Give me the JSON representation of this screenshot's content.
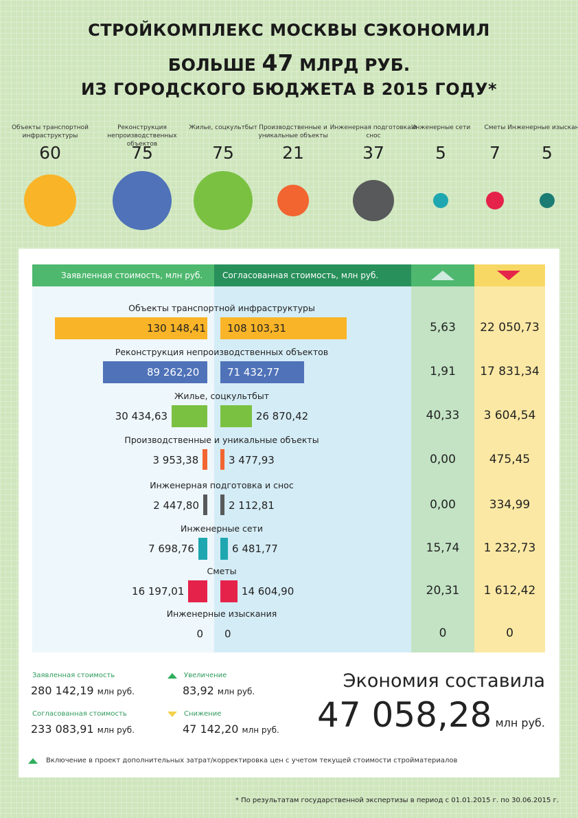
{
  "title": {
    "line1": "СТРОЙКОМПЛЕКС МОСКВЫ СЭКОНОМИЛ",
    "line2_pre": "БОЛЬШЕ ",
    "line2_big": "47",
    "line2_post": " МЛРД РУБ.",
    "line3": "ИЗ ГОРОДСКОГО БЮДЖЕТА В 2015 ГОДУ*"
  },
  "categories": [
    {
      "label": "Объекты транспортной инфраструктуры",
      "count": "60",
      "color": "#f9b427"
    },
    {
      "label": "Реконструкция непроизводственных объектов",
      "count": "75",
      "color": "#4f72b8"
    },
    {
      "label": "Жилье, соцкультбыт",
      "count": "75",
      "color": "#7ac142"
    },
    {
      "label": "Производственные и уникальные объекты",
      "count": "21",
      "color": "#f26531"
    },
    {
      "label": "Инженерная подготовка и снос",
      "count": "37",
      "color": "#58595b"
    },
    {
      "label": "Инженерные сети",
      "count": "5",
      "color": "#1ea7b0"
    },
    {
      "label": "Сметы",
      "count": "7",
      "color": "#e5234a"
    },
    {
      "label": "Инженерные изыскания",
      "count": "5",
      "color": "#1b7c74"
    }
  ],
  "table": {
    "col_declared": "Заявленная стоимость, млн руб.",
    "col_approved": "Согласованная стоимость, млн руб.",
    "col_increase_icon": "triangle-up-icon",
    "col_decrease_icon": "triangle-down-icon"
  },
  "rows": [
    {
      "label": "Объекты транспортной инфраструктуры",
      "declared": "130 148,41",
      "approved": "108 103,31",
      "increase": "5,63",
      "decrease": "22 050,73"
    },
    {
      "label": "Реконструкция непроизводственных объектов",
      "declared": "89 262,20",
      "approved": "71 432,77",
      "increase": "1,91",
      "decrease": "17 831,34"
    },
    {
      "label": "Жилье, соцкультбыт",
      "declared": "30 434,63",
      "approved": "26 870,42",
      "increase": "40,33",
      "decrease": "3 604,54"
    },
    {
      "label": "Производственные и уникальные объекты",
      "declared": "3 953,38",
      "approved": "3 477,93",
      "increase": "0,00",
      "decrease": "475,45"
    },
    {
      "label": "Инженерная подготовка и снос",
      "declared": "2 447,80",
      "approved": "2 112,81",
      "increase": "0,00",
      "decrease": "334,99"
    },
    {
      "label": "Инженерные сети",
      "declared": "7 698,76",
      "approved": "6 481,77",
      "increase": "15,74",
      "decrease": "1 232,73"
    },
    {
      "label": "Сметы",
      "declared": "16 197,01",
      "approved": "14 604,90",
      "increase": "20,31",
      "decrease": "1 612,42"
    },
    {
      "label": "Инженерные изыскания",
      "declared": "0",
      "approved": "0",
      "increase": "0",
      "decrease": "0"
    }
  ],
  "chart_data": {
    "type": "bar",
    "categories": [
      "Объекты транспортной инфраструктуры",
      "Реконструкция непроизводственных объектов",
      "Жилье, соцкультбыт",
      "Производственные и уникальные объекты",
      "Инженерная подготовка и снос",
      "Инженерные сети",
      "Сметы",
      "Инженерные изыскания"
    ],
    "series": [
      {
        "name": "Заявленная стоимость, млн руб.",
        "values": [
          130148.41,
          89262.2,
          30434.63,
          3953.38,
          2447.8,
          7698.76,
          16197.01,
          0
        ]
      },
      {
        "name": "Согласованная стоимость, млн руб.",
        "values": [
          108103.31,
          71432.77,
          26870.42,
          3477.93,
          2112.81,
          6481.77,
          14604.9,
          0
        ]
      }
    ],
    "increase": [
      5.63,
      1.91,
      40.33,
      0.0,
      0.0,
      15.74,
      20.31,
      0
    ],
    "decrease": [
      22050.73,
      17831.34,
      3604.54,
      475.45,
      334.99,
      1232.73,
      1612.42,
      0
    ],
    "object_counts": [
      60,
      75,
      75,
      21,
      37,
      5,
      7,
      5
    ],
    "colors": [
      "#f9b427",
      "#4f72b8",
      "#7ac142",
      "#f26531",
      "#58595b",
      "#1ea7b0",
      "#e5234a",
      "#1b7c74"
    ]
  },
  "legend": {
    "declared_label": "Заявленная стоимость",
    "declared_value": "280 142,19",
    "approved_label": "Согласованная стоимость",
    "approved_value": "233 083,91",
    "increase_label": "Увеличение",
    "increase_value": "83,92",
    "decrease_label": "Снижение",
    "decrease_value": "47 142,20",
    "unit": "млн руб."
  },
  "saving": {
    "title": "Экономия составила",
    "value": "47 058,28",
    "unit": "млн руб."
  },
  "note": "Включение в проект дополнительных затрат/корректировка цен с учетом текущей стоимости стройматериалов",
  "footnote": "* По результатам государственной экспертизы в период с 01.01.2015 г. по 30.06.2015 г."
}
